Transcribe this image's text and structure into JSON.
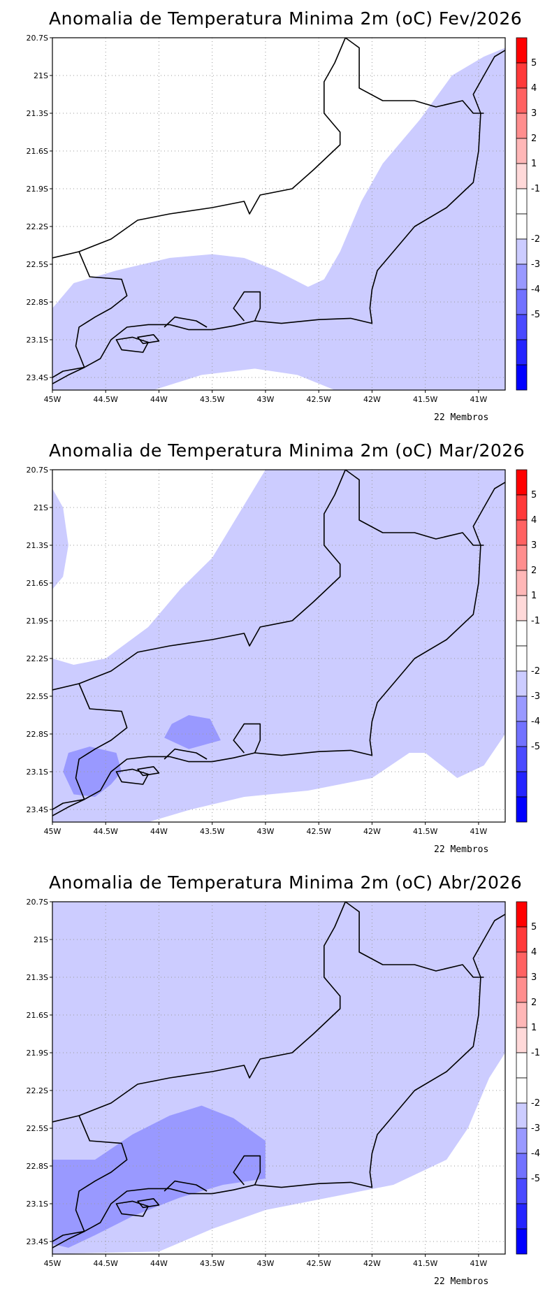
{
  "panels": [
    {
      "title": "Anomalia de Temperatura Minima 2m (oC) Fev/2026",
      "members_label": "22 Membros",
      "shading": [
        {
          "class": "-2 to -1",
          "color": "#ccccff",
          "lonlat": [
            [
              -45,
              -22.85
            ],
            [
              -44.8,
              -22.65
            ],
            [
              -44.4,
              -22.55
            ],
            [
              -43.9,
              -22.45
            ],
            [
              -43.5,
              -22.42
            ],
            [
              -43.2,
              -22.45
            ],
            [
              -42.9,
              -22.55
            ],
            [
              -42.6,
              -22.68
            ],
            [
              -42.45,
              -22.62
            ],
            [
              -42.3,
              -22.4
            ],
            [
              -42.1,
              -22.0
            ],
            [
              -41.9,
              -21.7
            ],
            [
              -41.55,
              -21.35
            ],
            [
              -41.25,
              -21.0
            ],
            [
              -40.95,
              -20.85
            ],
            [
              -40.75,
              -20.78
            ],
            [
              -40.75,
              -23.5
            ],
            [
              -42.35,
              -23.5
            ],
            [
              -42.7,
              -23.38
            ],
            [
              -43.1,
              -23.33
            ],
            [
              -43.6,
              -23.38
            ],
            [
              -44.05,
              -23.5
            ],
            [
              -45,
              -23.5
            ]
          ]
        }
      ]
    },
    {
      "title": "Anomalia de Temperatura Minima 2m (oC) Mar/2026",
      "members_label": "22 Membros",
      "shading": [
        {
          "class": "-2 to -1",
          "color": "#ccccff",
          "lonlat": [
            [
              -45,
              -22.2
            ],
            [
              -44.8,
              -22.25
            ],
            [
              -44.5,
              -22.2
            ],
            [
              -44.1,
              -21.95
            ],
            [
              -43.8,
              -21.65
            ],
            [
              -43.5,
              -21.4
            ],
            [
              -43.25,
              -21.05
            ],
            [
              -43.0,
              -20.7
            ],
            [
              -40.75,
              -20.7
            ],
            [
              -40.75,
              -22.8
            ],
            [
              -40.95,
              -23.05
            ],
            [
              -41.2,
              -23.15
            ],
            [
              -41.5,
              -22.95
            ],
            [
              -41.65,
              -22.95
            ],
            [
              -42.0,
              -23.15
            ],
            [
              -42.6,
              -23.25
            ],
            [
              -43.2,
              -23.3
            ],
            [
              -43.7,
              -23.4
            ],
            [
              -44.1,
              -23.5
            ],
            [
              -45,
              -23.5
            ]
          ]
        },
        {
          "class": "-2 to -1",
          "color": "#ccccff",
          "lonlat": [
            [
              -45,
              -20.85
            ],
            [
              -44.9,
              -21.0
            ],
            [
              -44.85,
              -21.3
            ],
            [
              -44.9,
              -21.55
            ],
            [
              -45,
              -21.65
            ]
          ]
        },
        {
          "class": "-3 to -2",
          "color": "#9999ff",
          "lonlat": [
            [
              -43.95,
              -22.83
            ],
            [
              -43.72,
              -22.92
            ],
            [
              -43.42,
              -22.85
            ],
            [
              -43.52,
              -22.68
            ],
            [
              -43.72,
              -22.65
            ],
            [
              -43.88,
              -22.72
            ]
          ]
        },
        {
          "class": "-3 to -2",
          "color": "#9999ff",
          "lonlat": [
            [
              -44.85,
              -22.95
            ],
            [
              -44.65,
              -22.9
            ],
            [
              -44.4,
              -22.95
            ],
            [
              -44.35,
              -23.1
            ],
            [
              -44.45,
              -23.2
            ],
            [
              -44.6,
              -23.3
            ],
            [
              -44.8,
              -23.28
            ],
            [
              -44.9,
              -23.1
            ]
          ]
        }
      ]
    },
    {
      "title": "Anomalia de Temperatura Minima 2m (oC) Abr/2026",
      "members_label": "22 Membros",
      "shading": [
        {
          "class": "-2 to -1",
          "color": "#ccccff",
          "lonlat": [
            [
              -45,
              -20.7
            ],
            [
              -40.75,
              -20.7
            ],
            [
              -40.75,
              -21.9
            ],
            [
              -40.9,
              -22.1
            ],
            [
              -41.1,
              -22.5
            ],
            [
              -41.3,
              -22.75
            ],
            [
              -41.8,
              -22.95
            ],
            [
              -42.4,
              -23.05
            ],
            [
              -43.0,
              -23.15
            ],
            [
              -43.5,
              -23.3
            ],
            [
              -44.0,
              -23.48
            ],
            [
              -45,
              -23.5
            ]
          ]
        },
        {
          "class": "-3 to -2",
          "color": "#9999ff",
          "lonlat": [
            [
              -45,
              -22.75
            ],
            [
              -44.6,
              -22.75
            ],
            [
              -44.25,
              -22.55
            ],
            [
              -43.9,
              -22.4
            ],
            [
              -43.6,
              -22.32
            ],
            [
              -43.3,
              -22.42
            ],
            [
              -43.0,
              -22.6
            ],
            [
              -43.0,
              -22.9
            ],
            [
              -43.4,
              -22.95
            ],
            [
              -43.8,
              -23.05
            ],
            [
              -44.25,
              -23.2
            ],
            [
              -44.6,
              -23.35
            ],
            [
              -44.85,
              -23.45
            ],
            [
              -45,
              -23.42
            ]
          ]
        }
      ]
    }
  ],
  "map": {
    "lon_range": [
      -45,
      -40.75
    ],
    "lat_range": [
      -23.5,
      -20.7
    ],
    "y_ticks": [
      {
        "lat": -20.7,
        "label": "20.7S"
      },
      {
        "lat": -21.0,
        "label": "21S"
      },
      {
        "lat": -21.3,
        "label": "21.3S"
      },
      {
        "lat": -21.6,
        "label": "21.6S"
      },
      {
        "lat": -21.9,
        "label": "21.9S"
      },
      {
        "lat": -22.2,
        "label": "22.2S"
      },
      {
        "lat": -22.5,
        "label": "22.5S"
      },
      {
        "lat": -22.8,
        "label": "22.8S"
      },
      {
        "lat": -23.1,
        "label": "23.1S"
      },
      {
        "lat": -23.4,
        "label": "23.4S"
      }
    ],
    "x_ticks": [
      {
        "lon": -45.0,
        "label": "45W"
      },
      {
        "lon": -44.5,
        "label": "44.5W"
      },
      {
        "lon": -44.0,
        "label": "44W"
      },
      {
        "lon": -43.5,
        "label": "43.5W"
      },
      {
        "lon": -43.0,
        "label": "43W"
      },
      {
        "lon": -42.5,
        "label": "42.5W"
      },
      {
        "lon": -42.0,
        "label": "42W"
      },
      {
        "lon": -41.5,
        "label": "41.5W"
      },
      {
        "lon": -41.0,
        "label": "41W"
      }
    ],
    "grid": "dotted",
    "state_border": [
      [
        -45,
        -22.45
      ],
      [
        -44.75,
        -22.4
      ],
      [
        -44.45,
        -22.3
      ],
      [
        -44.2,
        -22.15
      ],
      [
        -43.9,
        -22.1
      ],
      [
        -43.5,
        -22.05
      ],
      [
        -43.2,
        -22.0
      ],
      [
        -43.15,
        -22.1
      ],
      [
        -43.05,
        -21.95
      ],
      [
        -42.75,
        -21.9
      ],
      [
        -42.55,
        -21.75
      ],
      [
        -42.3,
        -21.55
      ],
      [
        -42.3,
        -21.45
      ],
      [
        -42.45,
        -21.3
      ],
      [
        -42.45,
        -21.05
      ],
      [
        -42.35,
        -20.9
      ],
      [
        -42.25,
        -20.7
      ],
      [
        -42.12,
        -20.78
      ],
      [
        -42.12,
        -21.1
      ],
      [
        -41.9,
        -21.2
      ],
      [
        -41.6,
        -21.2
      ],
      [
        -41.4,
        -21.25
      ],
      [
        -41.15,
        -21.2
      ],
      [
        -41.05,
        -21.3
      ],
      [
        -40.95,
        -21.3
      ]
    ],
    "west_border": [
      [
        -44.75,
        -22.4
      ],
      [
        -44.65,
        -22.6
      ],
      [
        -44.35,
        -22.62
      ],
      [
        -44.3,
        -22.75
      ],
      [
        -44.45,
        -22.85
      ],
      [
        -44.6,
        -22.92
      ],
      [
        -44.75,
        -23.0
      ],
      [
        -44.78,
        -23.15
      ],
      [
        -44.7,
        -23.32
      ],
      [
        -44.9,
        -23.35
      ],
      [
        -45,
        -23.4
      ]
    ],
    "coastline": [
      [
        -45,
        -23.45
      ],
      [
        -44.85,
        -23.38
      ],
      [
        -44.7,
        -23.32
      ],
      [
        -44.55,
        -23.25
      ],
      [
        -44.45,
        -23.1
      ],
      [
        -44.3,
        -23.0
      ],
      [
        -44.1,
        -22.98
      ],
      [
        -43.9,
        -22.98
      ],
      [
        -43.72,
        -23.02
      ],
      [
        -43.5,
        -23.02
      ],
      [
        -43.3,
        -22.99
      ],
      [
        -43.1,
        -22.95
      ],
      [
        -42.85,
        -22.97
      ],
      [
        -42.5,
        -22.94
      ],
      [
        -42.2,
        -22.93
      ],
      [
        -42.0,
        -22.97
      ],
      [
        -42.02,
        -22.85
      ],
      [
        -42.0,
        -22.7
      ],
      [
        -41.95,
        -22.55
      ],
      [
        -41.8,
        -22.4
      ],
      [
        -41.6,
        -22.2
      ],
      [
        -41.3,
        -22.05
      ],
      [
        -41.05,
        -21.85
      ],
      [
        -41.0,
        -21.6
      ],
      [
        -40.98,
        -21.3
      ],
      [
        -41.05,
        -21.15
      ],
      [
        -40.95,
        -21.0
      ],
      [
        -40.85,
        -20.85
      ],
      [
        -40.75,
        -20.8
      ]
    ],
    "bay": [
      [
        -43.2,
        -22.95
      ],
      [
        -43.3,
        -22.85
      ],
      [
        -43.2,
        -22.72
      ],
      [
        -43.05,
        -22.72
      ],
      [
        -43.05,
        -22.85
      ],
      [
        -43.1,
        -22.95
      ]
    ],
    "sepetiba": [
      [
        -43.95,
        -23.0
      ],
      [
        -43.85,
        -22.92
      ],
      [
        -43.65,
        -22.95
      ],
      [
        -43.55,
        -23.0
      ]
    ],
    "islands": [
      [
        [
          -44.4,
          -23.1
        ],
        [
          -44.25,
          -23.08
        ],
        [
          -44.1,
          -23.12
        ],
        [
          -44.15,
          -23.2
        ],
        [
          -44.35,
          -23.18
        ]
      ],
      [
        [
          -44.2,
          -23.08
        ],
        [
          -44.05,
          -23.06
        ],
        [
          -44.0,
          -23.11
        ],
        [
          -44.15,
          -23.13
        ]
      ]
    ]
  },
  "colorbar": {
    "colors": [
      "#ff0000",
      "#ff3a3a",
      "#ff6262",
      "#ff8e8e",
      "#ffb7b7",
      "#ffd9d9",
      "#ffffff",
      "#ffffff",
      "#ccccff",
      "#9999ff",
      "#7272ff",
      "#4a4aff",
      "#2424ff",
      "#0000ff"
    ],
    "labels": [
      "5",
      "4",
      "3",
      "2",
      "1",
      "-1",
      "-2",
      "-3",
      "-4",
      "-5"
    ]
  }
}
